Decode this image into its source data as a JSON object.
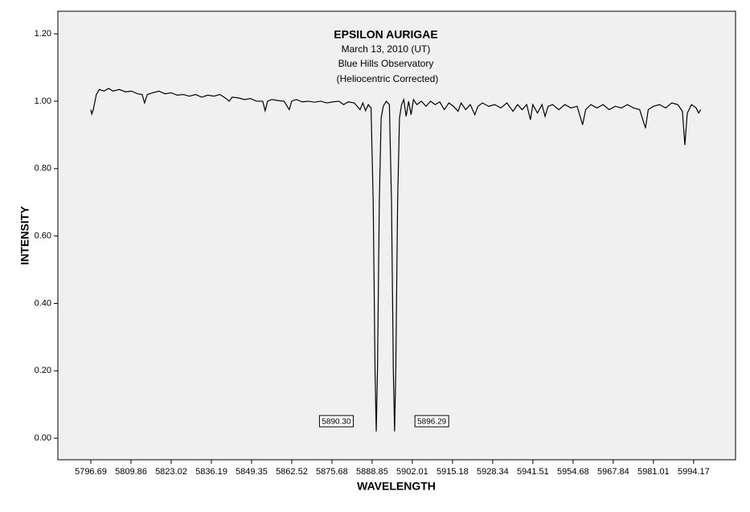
{
  "chart_data": {
    "type": "line",
    "title": "EPSILON AURIGAE",
    "subtitle": [
      "March 13, 2010 (UT)",
      "Blue Hills Observatory",
      "(Heliocentric Corrected)"
    ],
    "x_label": "WAVELENGTH",
    "y_label": "INTENSITY",
    "xlim": [
      5785.9,
      6007.9
    ],
    "ylim": [
      -0.064,
      1.267
    ],
    "xticks": [
      5796.69,
      5809.86,
      5823.02,
      5836.19,
      5849.35,
      5862.52,
      5875.68,
      5888.85,
      5902.01,
      5915.18,
      5928.34,
      5941.51,
      5954.68,
      5967.84,
      5981.01,
      5994.17
    ],
    "yticks": [
      {
        "value": 0,
        "label": "0.00"
      },
      {
        "value": 0.2,
        "label": "0.20"
      },
      {
        "value": 0.4,
        "label": "0.40"
      },
      {
        "value": 0.6,
        "label": "0.60"
      },
      {
        "value": 0.8,
        "label": "0.80"
      },
      {
        "value": 1,
        "label": "1.00"
      },
      {
        "value": 1.2,
        "label": "1.20"
      }
    ],
    "annotations": [
      {
        "label": "5890.30",
        "x": 5890.3
      },
      {
        "label": "5896.29",
        "x": 5896.29
      }
    ],
    "series": [
      {
        "color": "#000000",
        "x": [
          5796.7,
          5797.0,
          5797.5,
          5798.5,
          5799.5,
          5801,
          5802.5,
          5804,
          5806,
          5808,
          5810,
          5812,
          5813.5,
          5814.3,
          5815.2,
          5817,
          5819,
          5821,
          5823,
          5825,
          5827,
          5829,
          5831,
          5833,
          5835,
          5837,
          5839,
          5841,
          5842,
          5843,
          5845,
          5847,
          5849,
          5851,
          5853,
          5853.8,
          5854.6,
          5856,
          5858,
          5860,
          5861.7,
          5862.5,
          5864,
          5866,
          5868,
          5870,
          5872,
          5874,
          5876,
          5878,
          5879.5,
          5881,
          5883,
          5884.9,
          5885.8,
          5886.7,
          5887.6,
          5888.5,
          5889.2,
          5889.8,
          5890.2,
          5890.6,
          5891.2,
          5891.8,
          5892.5,
          5893.5,
          5894.5,
          5895.2,
          5895.8,
          5896.2,
          5896.6,
          5897.2,
          5897.8,
          5898.5,
          5899.2,
          5900,
          5900.8,
          5901.6,
          5902.4,
          5903.5,
          5905,
          5906.5,
          5908,
          5909.5,
          5911,
          5912.5,
          5914,
          5915.5,
          5917,
          5918,
          5919.5,
          5921,
          5922.5,
          5923.5,
          5925,
          5927,
          5929,
          5931,
          5933,
          5935,
          5936.5,
          5938,
          5939.5,
          5940.7,
          5941.5,
          5943,
          5944.5,
          5945.5,
          5946.5,
          5948,
          5950,
          5952,
          5954,
          5956,
          5957.8,
          5958.8,
          5960.5,
          5962.5,
          5964.5,
          5966.5,
          5968.5,
          5970.5,
          5972.5,
          5974.5,
          5976.5,
          5978.4,
          5979.3,
          5981,
          5983,
          5985,
          5987,
          5989,
          5990.5,
          5991.3,
          5992.1,
          5993.5,
          5995,
          5995.8,
          5996.5
        ],
        "values": [
          0.975,
          0.962,
          0.975,
          1.02,
          1.035,
          1.03,
          1.038,
          1.03,
          1.035,
          1.028,
          1.03,
          1.022,
          1.02,
          0.995,
          1.02,
          1.025,
          1.03,
          1.022,
          1.025,
          1.018,
          1.02,
          1.015,
          1.02,
          1.012,
          1.018,
          1.015,
          1.02,
          1.008,
          1.0,
          1.012,
          1.01,
          1.005,
          1.008,
          1.0,
          1.0,
          0.972,
          1.0,
          1.005,
          1.002,
          1.0,
          0.975,
          1.0,
          1.005,
          0.998,
          1.0,
          0.997,
          1.0,
          0.995,
          0.998,
          1.0,
          0.99,
          0.998,
          0.995,
          0.975,
          0.995,
          0.972,
          0.99,
          0.98,
          0.7,
          0.2,
          0.02,
          0.2,
          0.7,
          0.95,
          0.985,
          1.0,
          0.99,
          0.7,
          0.2,
          0.02,
          0.2,
          0.7,
          0.95,
          0.99,
          1.005,
          0.955,
          1.0,
          0.96,
          1.005,
          0.99,
          1.0,
          0.985,
          1.0,
          0.99,
          0.998,
          0.975,
          0.995,
          0.985,
          0.97,
          0.995,
          0.975,
          0.99,
          0.96,
          0.985,
          0.995,
          0.985,
          0.99,
          0.98,
          0.995,
          0.97,
          0.99,
          0.975,
          0.99,
          0.945,
          0.99,
          0.965,
          0.99,
          0.955,
          0.985,
          0.99,
          0.975,
          0.99,
          0.98,
          0.985,
          0.93,
          0.975,
          0.99,
          0.98,
          0.99,
          0.975,
          0.985,
          0.98,
          0.99,
          0.98,
          0.975,
          0.92,
          0.975,
          0.985,
          0.99,
          0.98,
          0.995,
          0.99,
          0.97,
          0.87,
          0.965,
          0.99,
          0.98,
          0.965,
          0.975
        ]
      }
    ]
  }
}
